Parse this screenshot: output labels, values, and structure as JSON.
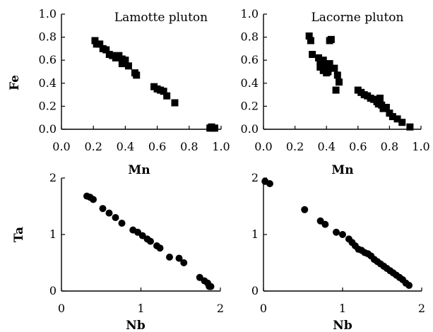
{
  "chart_data": [
    {
      "type": "scatter",
      "title": "Lamotte pluton",
      "xlabel": "Mn",
      "ylabel": "Fe",
      "xlim": [
        0.0,
        1.0
      ],
      "ylim": [
        0.0,
        1.0
      ],
      "xticks": [
        "0.0",
        "0.2",
        "0.4",
        "0.6",
        "0.8",
        "1.0"
      ],
      "yticks": [
        "0.0",
        "0.2",
        "0.4",
        "0.6",
        "0.8",
        "1.0"
      ],
      "marker": "square",
      "grid": false,
      "series": [
        {
          "x": [
            0.21,
            0.22,
            0.24,
            0.26,
            0.28,
            0.3,
            0.32,
            0.34,
            0.36,
            0.38,
            0.38,
            0.4,
            0.42,
            0.46,
            0.47,
            0.58,
            0.6,
            0.62,
            0.64,
            0.66,
            0.71,
            0.93,
            0.94,
            0.95,
            0.96
          ],
          "y": [
            0.77,
            0.74,
            0.74,
            0.7,
            0.69,
            0.65,
            0.64,
            0.62,
            0.64,
            0.61,
            0.57,
            0.6,
            0.55,
            0.49,
            0.47,
            0.37,
            0.35,
            0.34,
            0.33,
            0.29,
            0.23,
            0.01,
            0.02,
            0.01,
            0.01
          ]
        }
      ]
    },
    {
      "type": "scatter",
      "title": "Lacorne pluton",
      "xlabel": "Mn",
      "ylabel": "",
      "xlim": [
        0.0,
        1.0
      ],
      "ylim": [
        0.0,
        1.0
      ],
      "xticks": [
        "0.0",
        "0.2",
        "0.4",
        "0.6",
        "0.8",
        "1.0"
      ],
      "yticks": [
        "0.0",
        "0.2",
        "0.4",
        "0.6",
        "0.8",
        "1.0"
      ],
      "marker": "square",
      "grid": false,
      "series": [
        {
          "x": [
            0.29,
            0.3,
            0.31,
            0.42,
            0.43,
            0.35,
            0.36,
            0.37,
            0.38,
            0.39,
            0.4,
            0.41,
            0.42,
            0.45,
            0.47,
            0.48,
            0.46,
            0.36,
            0.38,
            0.4,
            0.42,
            0.6,
            0.62,
            0.64,
            0.66,
            0.68,
            0.7,
            0.72,
            0.73,
            0.74,
            0.75,
            0.76,
            0.78,
            0.8,
            0.82,
            0.85,
            0.88,
            0.93
          ],
          "y": [
            0.81,
            0.77,
            0.65,
            0.77,
            0.78,
            0.62,
            0.59,
            0.56,
            0.6,
            0.55,
            0.52,
            0.5,
            0.53,
            0.53,
            0.47,
            0.41,
            0.34,
            0.54,
            0.51,
            0.49,
            0.57,
            0.34,
            0.32,
            0.3,
            0.29,
            0.27,
            0.26,
            0.24,
            0.22,
            0.27,
            0.21,
            0.18,
            0.19,
            0.14,
            0.11,
            0.09,
            0.06,
            0.02
          ]
        }
      ]
    },
    {
      "type": "scatter",
      "title": "",
      "xlabel": "Nb",
      "ylabel": "Ta",
      "xlim": [
        0,
        2
      ],
      "ylim": [
        0,
        2
      ],
      "xticks": [
        "0",
        "1",
        "2"
      ],
      "yticks": [
        "0",
        "1",
        "2"
      ],
      "marker": "circle",
      "grid": false,
      "series": [
        {
          "x": [
            0.32,
            0.36,
            0.4,
            0.52,
            0.6,
            0.68,
            0.76,
            0.9,
            0.96,
            1.02,
            1.08,
            1.12,
            1.2,
            1.24,
            1.36,
            1.48,
            1.54,
            1.74,
            1.8,
            1.84,
            1.86,
            1.88
          ],
          "y": [
            1.68,
            1.66,
            1.62,
            1.46,
            1.38,
            1.3,
            1.2,
            1.08,
            1.04,
            0.98,
            0.92,
            0.88,
            0.8,
            0.76,
            0.6,
            0.58,
            0.5,
            0.24,
            0.18,
            0.14,
            0.08,
            0.08
          ]
        }
      ]
    },
    {
      "type": "scatter",
      "title": "",
      "xlabel": "Nb",
      "ylabel": "",
      "xlim": [
        0,
        2
      ],
      "ylim": [
        0,
        2
      ],
      "xticks": [
        "0",
        "1",
        "2"
      ],
      "yticks": [
        "0",
        "1",
        "2"
      ],
      "marker": "circle",
      "grid": false,
      "series": [
        {
          "x": [
            0.02,
            0.08,
            0.52,
            0.72,
            0.78,
            0.92,
            1.0,
            1.08,
            1.12,
            1.16,
            1.2,
            1.24,
            1.28,
            1.32,
            1.36,
            1.4,
            1.44,
            1.48,
            1.52,
            1.56,
            1.6,
            1.64,
            1.68,
            1.72,
            1.76,
            1.8,
            1.84
          ],
          "y": [
            1.94,
            1.9,
            1.44,
            1.24,
            1.18,
            1.04,
            1.0,
            0.92,
            0.86,
            0.8,
            0.74,
            0.72,
            0.68,
            0.66,
            0.62,
            0.56,
            0.52,
            0.48,
            0.44,
            0.4,
            0.36,
            0.32,
            0.28,
            0.24,
            0.2,
            0.14,
            0.1
          ]
        }
      ]
    }
  ]
}
